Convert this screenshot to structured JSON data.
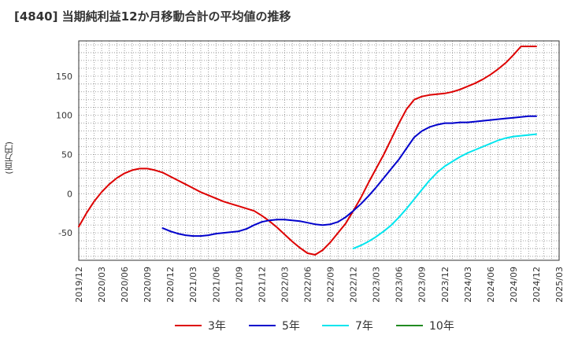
{
  "chart_data": {
    "type": "line",
    "title": "[4840]  当期純利益12か月移動合計の平均値の推移",
    "ylabel": "(百万円)",
    "xlabel": "",
    "ylim": [
      -85,
      195
    ],
    "y_ticks": [
      -50,
      0,
      50,
      100,
      150
    ],
    "grid": true,
    "legend_position": "bottom",
    "x_ticks": [
      "2019/12",
      "2020/03",
      "2020/06",
      "2020/09",
      "2020/12",
      "2021/03",
      "2021/06",
      "2021/09",
      "2021/12",
      "2022/03",
      "2022/06",
      "2022/09",
      "2022/12",
      "2023/03",
      "2023/06",
      "2023/09",
      "2023/12",
      "2024/03",
      "2024/06",
      "2024/09",
      "2024/12",
      "2025/03"
    ],
    "series": [
      {
        "name": "3年",
        "color": "#dd0000",
        "x": [
          "2019/12",
          "2020/01",
          "2020/02",
          "2020/03",
          "2020/04",
          "2020/05",
          "2020/06",
          "2020/07",
          "2020/08",
          "2020/09",
          "2020/10",
          "2020/11",
          "2020/12",
          "2021/01",
          "2021/02",
          "2021/03",
          "2021/04",
          "2021/05",
          "2021/06",
          "2021/07",
          "2021/08",
          "2021/09",
          "2021/10",
          "2021/11",
          "2021/12",
          "2022/01",
          "2022/02",
          "2022/03",
          "2022/04",
          "2022/05",
          "2022/06",
          "2022/07",
          "2022/08",
          "2022/09",
          "2022/10",
          "2022/11",
          "2022/12",
          "2023/01",
          "2023/02",
          "2023/03",
          "2023/04",
          "2023/05",
          "2023/06",
          "2023/07",
          "2023/08",
          "2023/09",
          "2023/10",
          "2023/11",
          "2023/12",
          "2024/01",
          "2024/02",
          "2024/03",
          "2024/04",
          "2024/05",
          "2024/06",
          "2024/07",
          "2024/08",
          "2024/09",
          "2024/10",
          "2024/11",
          "2024/12"
        ],
        "values": [
          -42,
          -25,
          -10,
          2,
          12,
          20,
          26,
          30,
          32,
          32,
          30,
          27,
          22,
          17,
          12,
          7,
          2,
          -2,
          -6,
          -10,
          -13,
          -16,
          -19,
          -22,
          -28,
          -35,
          -43,
          -52,
          -61,
          -69,
          -76,
          -78,
          -72,
          -62,
          -50,
          -38,
          -22,
          -5,
          14,
          32,
          50,
          70,
          90,
          108,
          120,
          124,
          126,
          127,
          128,
          130,
          133,
          137,
          141,
          146,
          152,
          159,
          167,
          177,
          188,
          188,
          188
        ],
        "visible_count": 61
      },
      {
        "name": "5年",
        "color": "#0000cc",
        "x": [
          "2020/11",
          "2020/12",
          "2021/01",
          "2021/02",
          "2021/03",
          "2021/04",
          "2021/05",
          "2021/06",
          "2021/07",
          "2021/08",
          "2021/09",
          "2021/10",
          "2021/11",
          "2021/12",
          "2022/01",
          "2022/02",
          "2022/03",
          "2022/04",
          "2022/05",
          "2022/06",
          "2022/07",
          "2022/08",
          "2022/09",
          "2022/10",
          "2022/11",
          "2022/12",
          "2023/01",
          "2023/02",
          "2023/03",
          "2023/04",
          "2023/05",
          "2023/06",
          "2023/07",
          "2023/08",
          "2023/09",
          "2023/10",
          "2023/11",
          "2023/12",
          "2024/01",
          "2024/02",
          "2024/03",
          "2024/04",
          "2024/05",
          "2024/06",
          "2024/07",
          "2024/08",
          "2024/09",
          "2024/10",
          "2024/11",
          "2024/12"
        ],
        "values": [
          -44,
          -48,
          -51,
          -53,
          -54,
          -54,
          -53,
          -51,
          -50,
          -49,
          -48,
          -45,
          -40,
          -36,
          -34,
          -33,
          -33,
          -34,
          -35,
          -37,
          -39,
          -40,
          -39,
          -36,
          -30,
          -22,
          -13,
          -3,
          8,
          20,
          32,
          44,
          58,
          72,
          80,
          85,
          88,
          90,
          90,
          91,
          91,
          92,
          93,
          94,
          95,
          96,
          97,
          98,
          99,
          99
        ],
        "visible_count": 50
      },
      {
        "name": "7年",
        "color": "#00e5ee",
        "x": [
          "2022/12",
          "2023/01",
          "2023/02",
          "2023/03",
          "2023/04",
          "2023/05",
          "2023/06",
          "2023/07",
          "2023/08",
          "2023/09",
          "2023/10",
          "2023/11",
          "2023/12",
          "2024/01",
          "2024/02",
          "2024/03",
          "2024/04",
          "2024/05",
          "2024/06",
          "2024/07",
          "2024/08",
          "2024/09",
          "2024/10",
          "2024/11",
          "2024/12"
        ],
        "values": [
          -70,
          -66,
          -61,
          -55,
          -48,
          -40,
          -30,
          -19,
          -7,
          5,
          17,
          27,
          35,
          41,
          47,
          52,
          56,
          60,
          64,
          68,
          71,
          73,
          74,
          75,
          76
        ],
        "visible_count": 25
      },
      {
        "name": "10年",
        "color": "#228b22",
        "x": [],
        "values": [],
        "visible_count": 0
      }
    ]
  }
}
